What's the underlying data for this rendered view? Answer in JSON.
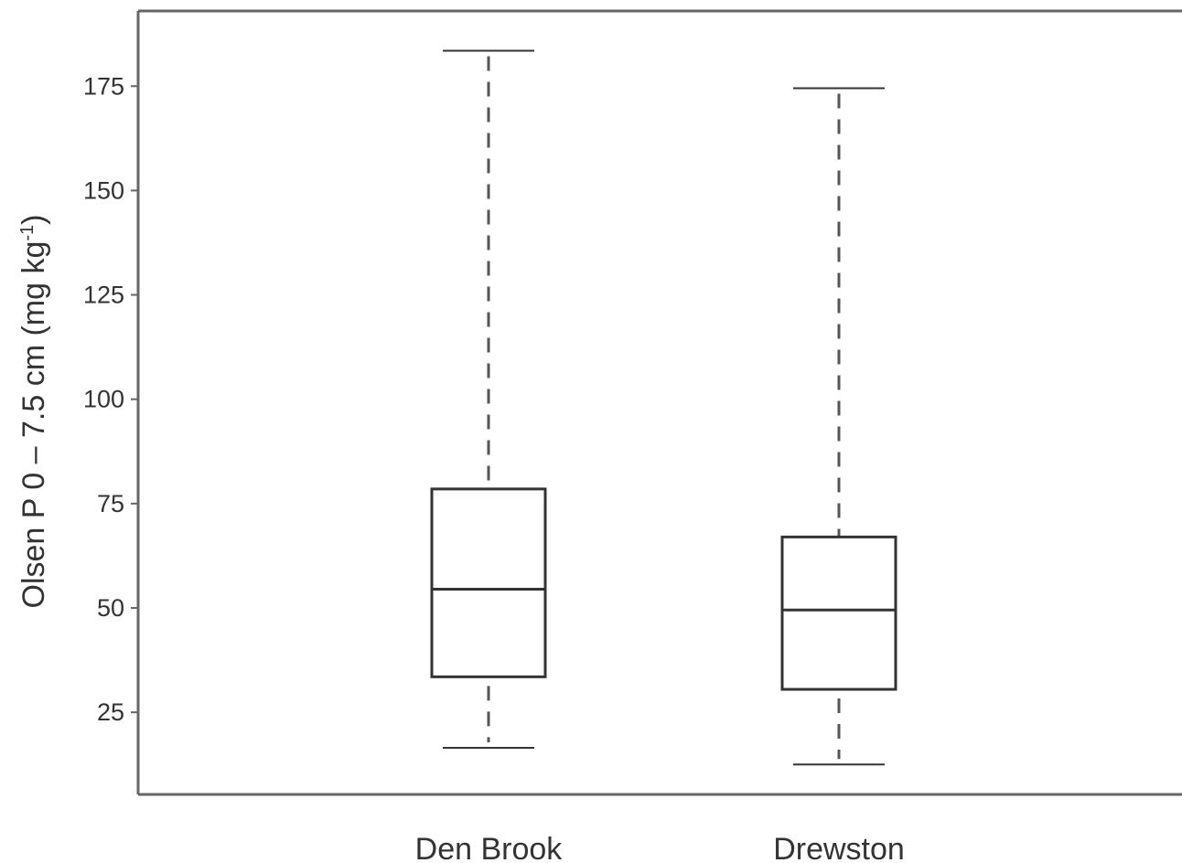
{
  "chart_data": {
    "type": "box",
    "title": "",
    "ylabel": "Olsen P 0 – 7.5 cm  (mg kg",
    "ylabel_sup": "-1",
    "ylabel_close": ")",
    "xlabel": "",
    "ylim": [
      0,
      190
    ],
    "yticks": [
      25,
      50,
      75,
      100,
      125,
      150,
      175
    ],
    "categories": [
      "Den Brook",
      "Drewston"
    ],
    "boxes": [
      {
        "category": "Den Brook",
        "whisker_low": 16.5,
        "q1": 33.5,
        "median": 54.5,
        "q3": 78.5,
        "whisker_high": 183.5
      },
      {
        "category": "Drewston",
        "whisker_low": 12.5,
        "q1": 30.5,
        "median": 49.5,
        "q3": 67.0,
        "whisker_high": 174.5
      }
    ],
    "grid": false,
    "legend": "none",
    "colors": {
      "box_stroke": "#333333",
      "whisker": "#555555",
      "axis": "#666666",
      "text": "#333333"
    }
  }
}
